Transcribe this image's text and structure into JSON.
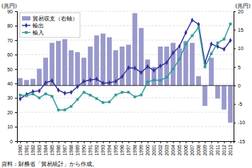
{
  "chart_data": {
    "type": "bar",
    "x": [
      1980,
      1981,
      1982,
      1983,
      1984,
      1985,
      1986,
      1987,
      1988,
      1989,
      1990,
      1991,
      1992,
      1993,
      1994,
      1995,
      1996,
      1997,
      1998,
      1999,
      2000,
      2001,
      2002,
      2003,
      2004,
      2005,
      2006,
      2007,
      2008,
      2009,
      2010,
      2011,
      2012,
      2013
    ],
    "xlim": [
      1979.5,
      2013.5
    ],
    "xticks": [
      1980,
      1981,
      1982,
      1983,
      1984,
      1985,
      1986,
      1987,
      1988,
      1989,
      1990,
      1991,
      1992,
      1993,
      1994,
      1995,
      1996,
      1997,
      1998,
      1999,
      2000,
      2001,
      2002,
      2003,
      2004,
      2005,
      2006,
      2007,
      2008,
      2009,
      2010,
      2011,
      2012,
      2013
    ],
    "ylim": [
      0,
      90
    ],
    "yticks": [
      0,
      10,
      20,
      30,
      40,
      50,
      60,
      70,
      80,
      90
    ],
    "y2lim": [
      -15,
      20
    ],
    "y2ticks": [
      -15,
      -10,
      -5,
      0,
      5,
      10,
      15,
      20
    ],
    "y_label": "(兆円)",
    "y2_label": "(兆円)",
    "source": "資料：財務省「貿易統計」から作成。",
    "grid": true,
    "legend": "upper left",
    "series": [
      {
        "name": "貿易収支（右軸）",
        "type": "bar",
        "axis": "y2",
        "color": "#9999cc",
        "values": [
          2.0,
          1.5,
          1.8,
          4.5,
          7.5,
          11.5,
          12.0,
          12.5,
          9.5,
          9.0,
          7.5,
          10.5,
          13.5,
          14.0,
          13.0,
          9.5,
          10.5,
          11.0,
          19.5,
          15.5,
          7.0,
          5.0,
          10.5,
          10.5,
          11.5,
          10.0,
          12.0,
          11.5,
          2.5,
          -5.5,
          7.5,
          -3.5,
          -6.5,
          -10.0
        ]
      },
      {
        "name": "輸出",
        "type": "line",
        "color": "#333399",
        "marker": "diamond",
        "values": [
          29.4,
          32.4,
          34.4,
          34.9,
          40.5,
          41.9,
          35.4,
          33.3,
          33.9,
          37.8,
          41.5,
          42.4,
          43.0,
          40.2,
          40.5,
          41.5,
          44.7,
          50.9,
          50.6,
          47.5,
          51.7,
          49.0,
          52.1,
          54.5,
          61.2,
          65.7,
          75.2,
          83.9,
          81.0,
          54.2,
          67.4,
          65.5,
          63.7,
          69.8
        ]
      },
      {
        "name": "輸入",
        "type": "line",
        "color": "#339999",
        "marker": "square",
        "values": [
          31.9,
          31.5,
          32.7,
          30.0,
          32.8,
          31.1,
          21.6,
          21.7,
          24.1,
          28.9,
          33.9,
          31.9,
          29.5,
          26.8,
          27.2,
          32.0,
          33.9,
          33.9,
          30.7,
          32.0,
          40.9,
          42.4,
          42.1,
          44.3,
          49.9,
          56.9,
          67.3,
          73.1,
          78.7,
          51.5,
          60.6,
          68.1,
          70.7,
          81.2
        ]
      }
    ]
  }
}
